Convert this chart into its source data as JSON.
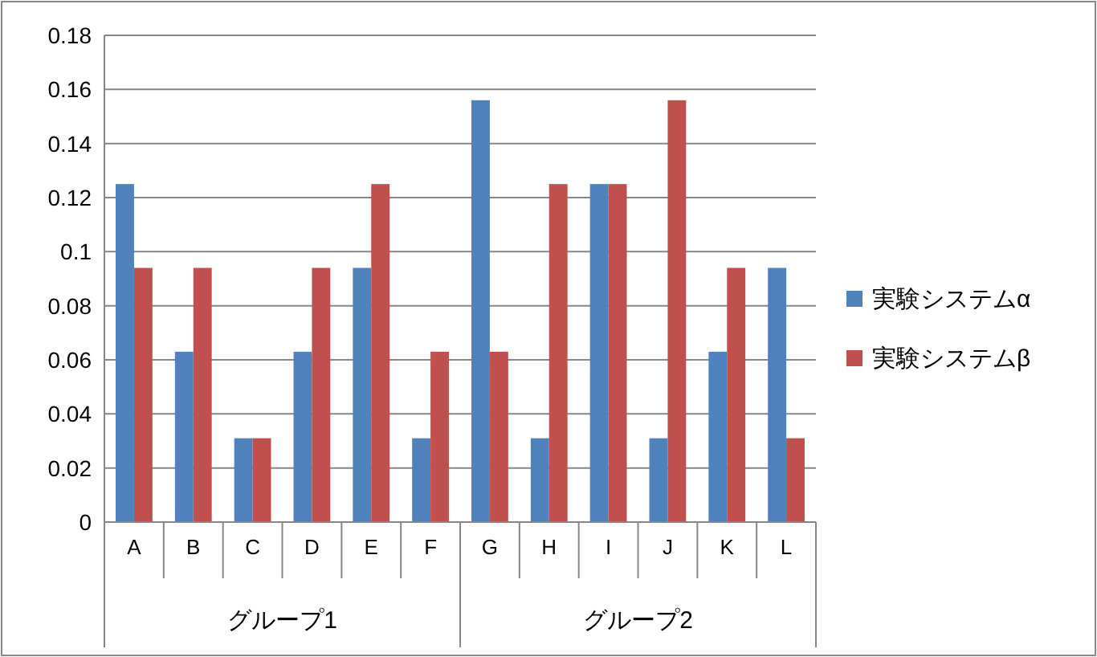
{
  "chart_data": {
    "type": "bar",
    "categories": [
      "A",
      "B",
      "C",
      "D",
      "E",
      "F",
      "G",
      "H",
      "I",
      "J",
      "K",
      "L"
    ],
    "series": [
      {
        "name": "実験システムα",
        "color": "#4f81bd",
        "values": [
          0.125,
          0.063,
          0.031,
          0.063,
          0.094,
          0.031,
          0.156,
          0.031,
          0.125,
          0.031,
          0.063,
          0.094
        ]
      },
      {
        "name": "実験システムβ",
        "color": "#c0504d",
        "values": [
          0.094,
          0.094,
          0.031,
          0.094,
          0.125,
          0.063,
          0.063,
          0.125,
          0.125,
          0.156,
          0.094,
          0.031
        ]
      }
    ],
    "ylim": [
      0,
      0.18
    ],
    "yticks": [
      0,
      0.02,
      0.04,
      0.06,
      0.08,
      0.1,
      0.12,
      0.14,
      0.16,
      0.18
    ],
    "grid": "y",
    "legend": "right",
    "annotations": [
      "グループ1",
      "グループ2"
    ]
  }
}
